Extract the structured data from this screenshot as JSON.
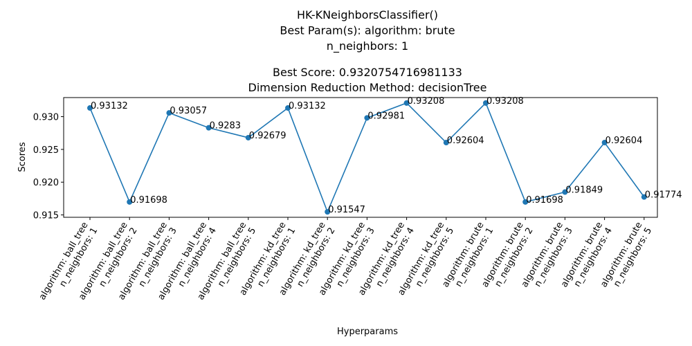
{
  "chart_data": {
    "type": "line",
    "title_lines": [
      "HK-KNeighborsClassifier()",
      "Best Param(s): algorithm: brute",
      "n_neighbors: 1",
      "",
      "Best Score: 0.9320754716981133",
      "Dimension Reduction Method: decisionTree"
    ],
    "xlabel": "Hyperparams",
    "ylabel": "Scores",
    "categories": [
      [
        "algorithm: ball_tree",
        "n_neighbors: 1"
      ],
      [
        "algorithm: ball_tree",
        "n_neighbors: 2"
      ],
      [
        "algorithm: ball_tree",
        "n_neighbors: 3"
      ],
      [
        "algorithm: ball_tree",
        "n_neighbors: 4"
      ],
      [
        "algorithm: ball_tree",
        "n_neighbors: 5"
      ],
      [
        "algorithm: kd_tree",
        "n_neighbors: 1"
      ],
      [
        "algorithm: kd_tree",
        "n_neighbors: 2"
      ],
      [
        "algorithm: kd_tree",
        "n_neighbors: 3"
      ],
      [
        "algorithm: kd_tree",
        "n_neighbors: 4"
      ],
      [
        "algorithm: kd_tree",
        "n_neighbors: 5"
      ],
      [
        "algorithm: brute",
        "n_neighbors: 1"
      ],
      [
        "algorithm: brute",
        "n_neighbors: 2"
      ],
      [
        "algorithm: brute",
        "n_neighbors: 3"
      ],
      [
        "algorithm: brute",
        "n_neighbors: 4"
      ],
      [
        "algorithm: brute",
        "n_neighbors: 5"
      ]
    ],
    "values": [
      0.93132,
      0.91698,
      0.93057,
      0.9283,
      0.92679,
      0.93132,
      0.91547,
      0.92981,
      0.93208,
      0.92604,
      0.93208,
      0.91698,
      0.91849,
      0.92604,
      0.91774
    ],
    "labels": [
      "0.93132",
      "0.91698",
      "0.93057",
      "0.9283",
      "0.92679",
      "0.93132",
      "0.91547",
      "0.92981",
      "0.93208",
      "0.92604",
      "0.93208",
      "0.91698",
      "0.91849",
      "0.92604",
      "0.91774"
    ],
    "yticks": [
      "0.915",
      "0.920",
      "0.925",
      "0.930"
    ],
    "ylim": [
      0.91464,
      0.93291
    ],
    "grid": false,
    "legend": "none",
    "line_color": "#1f77b4",
    "marker_color": "#1f77b4"
  }
}
